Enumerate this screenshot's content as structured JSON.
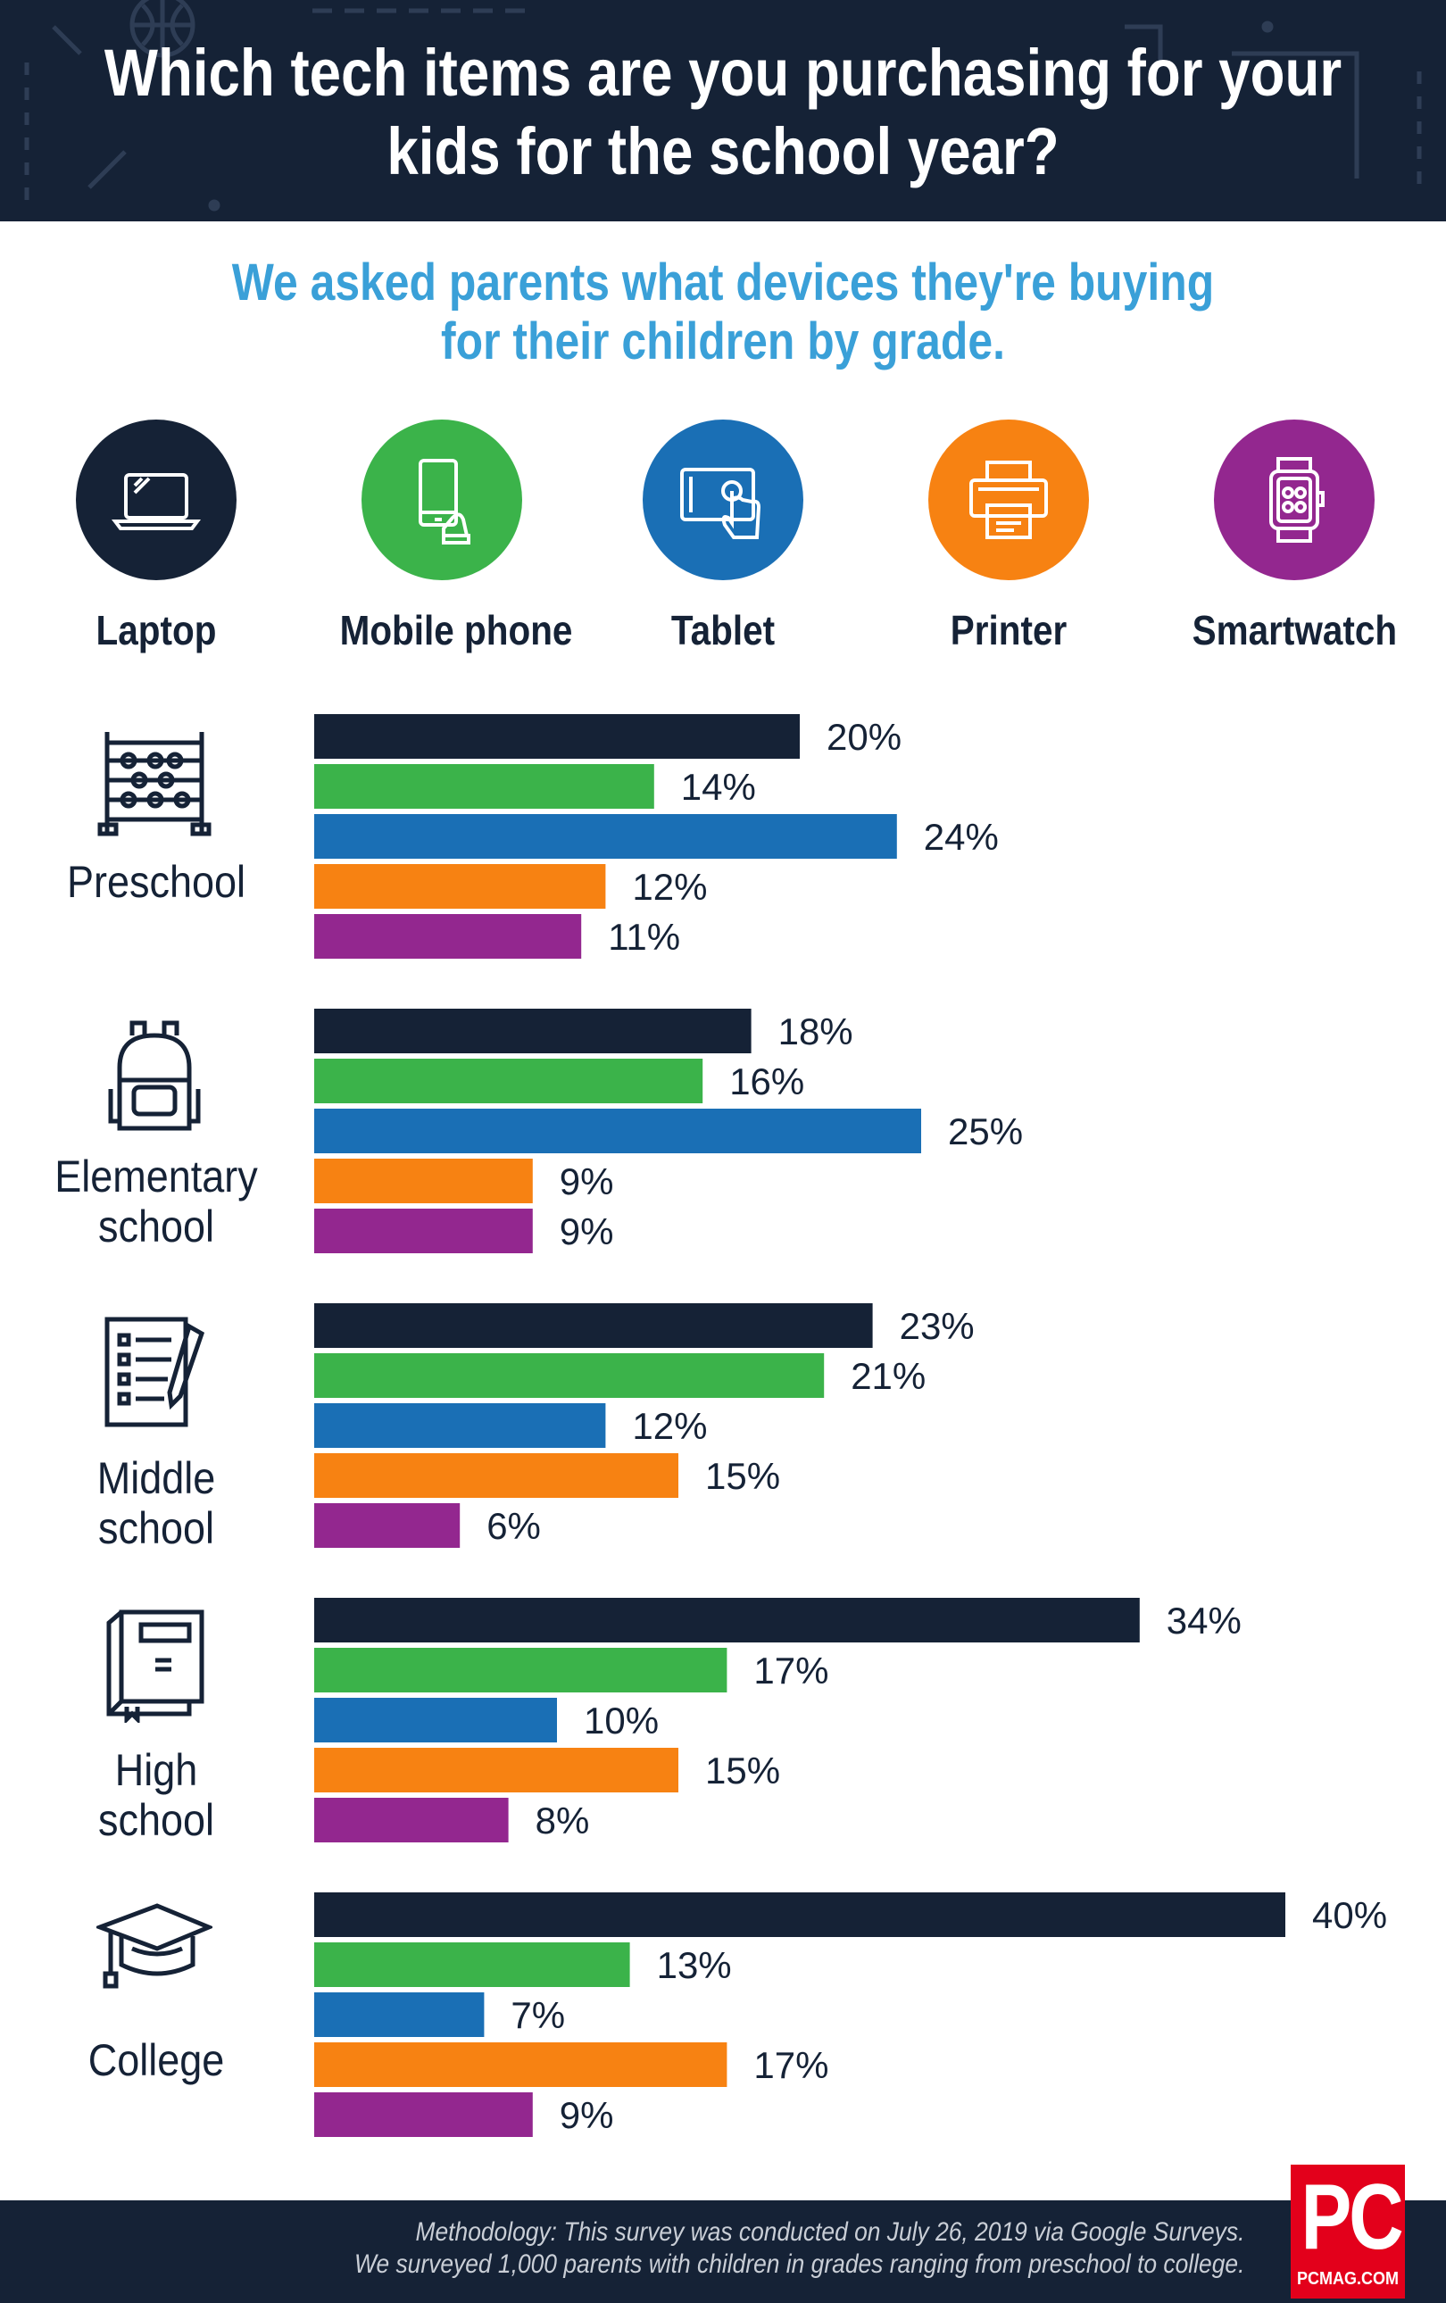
{
  "header": {
    "title_lines": [
      "Which tech items are you purchasing for your",
      "kids for the school year?"
    ]
  },
  "subtitle_lines": [
    "We asked parents what devices they're buying",
    "for their children by grade."
  ],
  "devices": [
    {
      "label": "Laptop",
      "icon": "laptop-icon",
      "color": "#152236"
    },
    {
      "label": "Mobile phone",
      "icon": "mobile-phone-icon",
      "color": "#3bb34a"
    },
    {
      "label": "Tablet",
      "icon": "tablet-icon",
      "color": "#1a6fb5"
    },
    {
      "label": "Printer",
      "icon": "printer-icon",
      "color": "#f78212"
    },
    {
      "label": "Smartwatch",
      "icon": "smartwatch-icon",
      "color": "#93278f"
    }
  ],
  "chart_data": {
    "type": "bar",
    "orientation": "horizontal",
    "value_suffix": "%",
    "series_names": [
      "Laptop",
      "Mobile phone",
      "Tablet",
      "Printer",
      "Smartwatch"
    ],
    "colors": [
      "#152236",
      "#3bb34a",
      "#1a6fb5",
      "#f78212",
      "#93278f"
    ],
    "groups": [
      {
        "label_lines": [
          "Preschool"
        ],
        "icon": "abacus-icon",
        "values": [
          20,
          14,
          24,
          12,
          11
        ]
      },
      {
        "label_lines": [
          "Elementary",
          "school"
        ],
        "icon": "backpack-icon",
        "values": [
          18,
          16,
          25,
          9,
          9
        ]
      },
      {
        "label_lines": [
          "Middle",
          "school"
        ],
        "icon": "checklist-icon",
        "values": [
          23,
          21,
          12,
          15,
          6
        ]
      },
      {
        "label_lines": [
          "High",
          "school"
        ],
        "icon": "books-icon",
        "values": [
          34,
          17,
          10,
          15,
          8
        ]
      },
      {
        "label_lines": [
          "College"
        ],
        "icon": "graduation-cap-icon",
        "values": [
          40,
          13,
          7,
          17,
          9
        ]
      }
    ]
  },
  "footer": {
    "methodology_lines": [
      "Methodology: This survey was conducted on July 26, 2019 via Google Surveys.",
      "We surveyed 1,000 parents with children in grades ranging from preschool to college."
    ],
    "logo_text": "PC",
    "logo_site": "PCMAG.COM"
  }
}
